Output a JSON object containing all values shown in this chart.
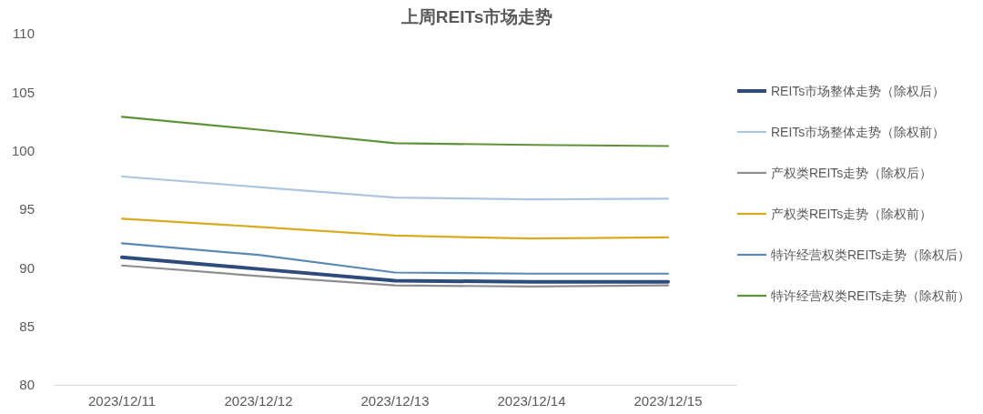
{
  "chart_data": {
    "type": "line",
    "title": "上周REITs市场走势",
    "categories": [
      "2023/12/11",
      "2023/12/12",
      "2023/12/13",
      "2023/12/14",
      "2023/12/15"
    ],
    "series": [
      {
        "name": "REITs市场整体走势（除权后）",
        "color": "#2f4b7c",
        "values": [
          90.9,
          89.9,
          88.9,
          88.8,
          88.8
        ]
      },
      {
        "name": "REITs市场整体走势（除权前）",
        "color": "#adc6e0",
        "values": [
          97.8,
          96.9,
          96.0,
          95.85,
          95.9
        ]
      },
      {
        "name": "产权类REITs走势（除权后）",
        "color": "#8e8e8e",
        "values": [
          90.2,
          89.3,
          88.5,
          88.4,
          88.5
        ]
      },
      {
        "name": "产权类REITs走势（除权前）",
        "color": "#d6ab1f",
        "values": [
          94.2,
          93.5,
          92.75,
          92.5,
          92.6
        ]
      },
      {
        "name": "特许经营权类REITs走势（除权后）",
        "color": "#5b88b6",
        "values": [
          92.1,
          91.1,
          89.6,
          89.5,
          89.5
        ]
      },
      {
        "name": "特许经营权类REITs走势（除权前）",
        "color": "#5f9239",
        "values": [
          102.9,
          101.8,
          100.65,
          100.5,
          100.4
        ]
      }
    ],
    "ylim": [
      80,
      110
    ],
    "yticks": [
      80,
      85,
      90,
      95,
      100,
      105,
      110
    ],
    "grid": false,
    "legend": "right",
    "marker": "none",
    "line_style": "solid"
  }
}
